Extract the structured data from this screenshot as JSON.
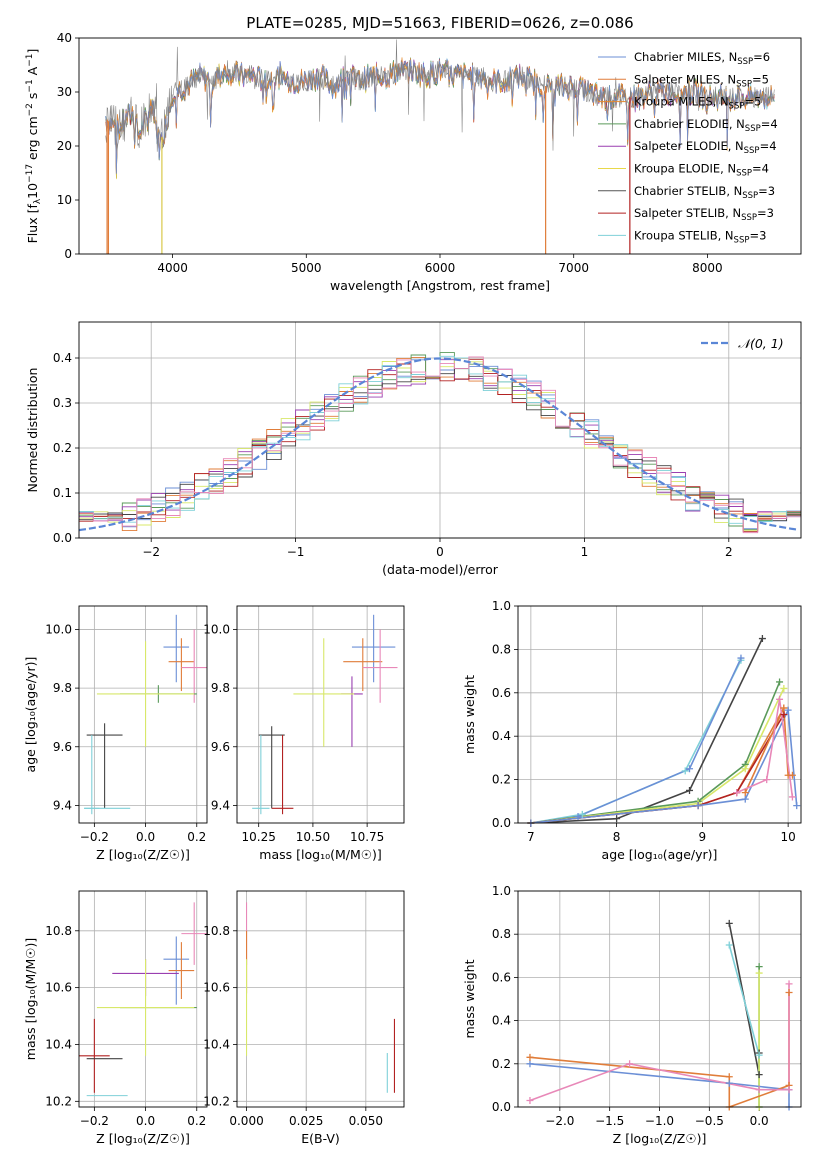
{
  "figure_title": "PLATE=0285, MJD=51663, FIBERID=0626, z=0.086",
  "chart_data": [
    {
      "id": "spectrum",
      "type": "line",
      "title": "PLATE=0285, MJD=51663, FIBERID=0626, z=0.086",
      "xlabel": "wavelength [Angstrom, rest frame]",
      "ylabel_parts": [
        "Flux [f",
        "λ",
        "10",
        "−17",
        " erg cm",
        "−2",
        " s",
        "−1",
        " A",
        "−1",
        "]"
      ],
      "xlim": [
        3300,
        8700
      ],
      "ylim": [
        0,
        40
      ],
      "xticks": [
        4000,
        5000,
        6000,
        7000,
        8000
      ],
      "yticks": [
        0,
        10,
        20,
        30,
        40
      ],
      "grid": false,
      "legend_location": "upper right",
      "legend": [
        {
          "pre": "Chabrier MILES, N",
          "sub": "SSP",
          "post": "=6",
          "color": "#6b8fd6"
        },
        {
          "pre": "Salpeter MILES, N",
          "sub": "SSP",
          "post": "=5",
          "color": "#e07d3a"
        },
        {
          "pre": "Kroupa MILES, N",
          "sub": "SSP",
          "post": "=5",
          "color": "#e6892e"
        },
        {
          "pre": "Chabrier ELODIE, N",
          "sub": "SSP",
          "post": "=4",
          "color": "#5a9a5a"
        },
        {
          "pre": "Salpeter ELODIE, N",
          "sub": "SSP",
          "post": "=4",
          "color": "#9a3fb0"
        },
        {
          "pre": "Kroupa ELODIE, N",
          "sub": "SSP",
          "post": "=4",
          "color": "#e8d84a"
        },
        {
          "pre": "Chabrier STELIB, N",
          "sub": "SSP",
          "post": "=3",
          "color": "#555555"
        },
        {
          "pre": "Salpeter STELIB, N",
          "sub": "SSP",
          "post": "=3",
          "color": "#b22222"
        },
        {
          "pre": "Kroupa STELIB, N",
          "sub": "SSP",
          "post": "=3",
          "color": "#7fd0d8"
        }
      ],
      "data_envelope": {
        "x": [
          3500,
          3550,
          3600,
          3650,
          3700,
          3750,
          3800,
          3850,
          3900,
          3950,
          4000,
          4100,
          4200,
          4300,
          4400,
          4500,
          4600,
          4700,
          4800,
          4900,
          5000,
          5100,
          5200,
          5300,
          5400,
          5500,
          5600,
          5700,
          5800,
          5900,
          6000,
          6100,
          6200,
          6300,
          6400,
          6500,
          6600,
          6700,
          6800,
          6900,
          7000,
          7100,
          7200,
          7300,
          7400,
          7500,
          7600,
          7700,
          7800,
          7900,
          8000,
          8100,
          8200,
          8300,
          8400,
          8500
        ],
        "y": [
          25,
          24,
          23,
          25,
          26,
          22,
          25,
          28,
          20,
          24,
          30,
          31,
          33,
          32,
          34,
          33,
          33,
          32,
          33,
          32,
          32,
          33,
          31,
          33,
          32,
          33,
          33,
          34,
          34,
          33,
          34,
          33,
          33,
          33,
          32,
          32,
          33,
          32,
          31,
          31,
          31,
          30,
          29,
          29,
          29,
          29,
          30,
          30,
          30,
          30,
          29,
          29,
          29,
          29,
          29,
          29
        ]
      },
      "spike_markers": [
        3510,
        3520,
        3920,
        6790,
        7420
      ]
    },
    {
      "id": "residuals",
      "type": "line",
      "xlabel": "(data-model)/error",
      "ylabel": "Normed distribution",
      "xlim": [
        -2.5,
        2.5
      ],
      "ylim": [
        0,
        0.48
      ],
      "xticks": [
        -2,
        -1,
        0,
        1,
        2
      ],
      "yticks": [
        0.0,
        0.1,
        0.2,
        0.3,
        0.4
      ],
      "grid": true,
      "legend_location": "upper right",
      "legend_label": "𝒩(0, 1)",
      "series": [
        {
          "name": "𝒩(0, 1)",
          "kind": "gaussian",
          "mean": 0,
          "sigma": 1,
          "color": "#5a86d6"
        }
      ]
    },
    {
      "id": "age-vs-Z",
      "type": "scatter",
      "xlabel": "Z [log₁₀(Z/Z☉)]",
      "ylabel": "age  [log₁₀(age/yr)]",
      "xlim": [
        -0.26,
        0.24
      ],
      "ylim": [
        9.34,
        10.08
      ],
      "xticks": [
        -0.2,
        0.0,
        0.2
      ],
      "yticks": [
        9.4,
        9.6,
        9.8,
        10.0
      ],
      "grid": true,
      "points": [
        {
          "x": 0.12,
          "y": 9.94,
          "xerr": 0.05,
          "yerr": [
            0.12,
            0.11
          ],
          "color": "#6b8fd6"
        },
        {
          "x": 0.14,
          "y": 9.89,
          "xerr": 0.05,
          "yerr": [
            0.1,
            0.08
          ],
          "color": "#e07d3a"
        },
        {
          "x": 0.19,
          "y": 9.87,
          "xerr": 0.05,
          "yerr": [
            0.12,
            0.13
          ],
          "color": "#e888b8"
        },
        {
          "x": 0.05,
          "y": 9.78,
          "xerr": 0.15,
          "yerr": [
            0.03,
            0.03
          ],
          "color": "#5a9a5a"
        },
        {
          "x": 0.0,
          "y": 9.78,
          "xerr": 0.19,
          "yerr": [
            0.18,
            0.18
          ],
          "color": "#d8e86a"
        },
        {
          "x": -0.16,
          "y": 9.64,
          "xerr": 0.07,
          "yerr": [
            0.25,
            0.04
          ],
          "color": "#444444"
        },
        {
          "x": -0.21,
          "y": 9.39,
          "xerr": 0.03,
          "yerr": [
            0.02,
            0.25
          ],
          "color": "#7fd0d8"
        },
        {
          "x": -0.15,
          "y": 9.39,
          "xerr": 0.09,
          "yerr": [
            0.0,
            0.0
          ],
          "color": "#7fd0d8"
        }
      ]
    },
    {
      "id": "age-vs-mass",
      "type": "scatter",
      "xlabel": "mass [log₁₀(M/M☉)]",
      "ylabel": "",
      "xlim": [
        10.15,
        10.92
      ],
      "ylim": [
        9.34,
        10.08
      ],
      "xticks": [
        10.25,
        10.5,
        10.75
      ],
      "yticks": [
        9.4,
        9.6,
        9.8,
        10.0
      ],
      "grid": true,
      "points": [
        {
          "x": 10.78,
          "y": 9.94,
          "xerr": 0.1,
          "yerr": [
            0.12,
            0.11
          ],
          "color": "#6b8fd6"
        },
        {
          "x": 10.73,
          "y": 9.89,
          "xerr": 0.09,
          "yerr": [
            0.1,
            0.08
          ],
          "color": "#e07d3a"
        },
        {
          "x": 10.81,
          "y": 9.87,
          "xerr": 0.08,
          "yerr": [
            0.12,
            0.13
          ],
          "color": "#e888b8"
        },
        {
          "x": 10.68,
          "y": 9.78,
          "xerr": 0.05,
          "yerr": [
            0.18,
            0.06
          ],
          "color": "#9a3fb0"
        },
        {
          "x": 10.55,
          "y": 9.78,
          "xerr": 0.14,
          "yerr": [
            0.18,
            0.19
          ],
          "color": "#d8e86a"
        },
        {
          "x": 10.31,
          "y": 9.64,
          "xerr": 0.06,
          "yerr": [
            0.25,
            0.03
          ],
          "color": "#444444"
        },
        {
          "x": 10.36,
          "y": 9.39,
          "xerr": 0.05,
          "yerr": [
            0.02,
            0.25
          ],
          "color": "#b22222"
        },
        {
          "x": 10.26,
          "y": 9.39,
          "xerr": 0.04,
          "yerr": [
            0.02,
            0.25
          ],
          "color": "#7fd0d8"
        }
      ]
    },
    {
      "id": "mass-weight-vs-age",
      "type": "line",
      "xlabel": "age  [log₁₀(age/yr)]",
      "ylabel": "mass weight",
      "xlim": [
        6.85,
        10.15
      ],
      "ylim": [
        0,
        1.0
      ],
      "xticks": [
        7,
        8,
        9,
        10
      ],
      "yticks": [
        0.0,
        0.2,
        0.4,
        0.6,
        0.8,
        1.0
      ],
      "grid": true,
      "series": [
        {
          "color": "#444444",
          "x": [
            7.0,
            8.0,
            8.85,
            9.7
          ],
          "y": [
            0.0,
            0.02,
            0.15,
            0.85
          ]
        },
        {
          "color": "#7fd0d8",
          "x": [
            7.0,
            7.6,
            8.8,
            9.45
          ],
          "y": [
            0.0,
            0.04,
            0.24,
            0.75
          ]
        },
        {
          "color": "#6b8fd6",
          "x": [
            7.0,
            7.55,
            8.85,
            9.45
          ],
          "y": [
            0.0,
            0.03,
            0.25,
            0.76
          ]
        },
        {
          "color": "#5a9a5a",
          "x": [
            7.0,
            8.95,
            9.5,
            9.9
          ],
          "y": [
            0.0,
            0.1,
            0.27,
            0.65
          ]
        },
        {
          "color": "#d8e86a",
          "x": [
            7.0,
            8.95,
            9.5,
            9.95
          ],
          "y": [
            0.0,
            0.09,
            0.25,
            0.62
          ]
        },
        {
          "color": "#e07d3a",
          "x": [
            7.0,
            8.95,
            9.4,
            9.95
          ],
          "y": [
            0.0,
            0.08,
            0.14,
            0.53
          ]
        },
        {
          "color": "#b22222",
          "x": [
            7.0,
            8.95,
            9.4,
            9.95
          ],
          "y": [
            0.0,
            0.08,
            0.14,
            0.5
          ]
        },
        {
          "color": "#6b8fd6",
          "x": [
            7.0,
            8.95,
            9.5,
            10.0,
            10.1
          ],
          "y": [
            0.0,
            0.08,
            0.11,
            0.52,
            0.08
          ]
        },
        {
          "color": "#e07d3a",
          "x": [
            9.5,
            9.95,
            10.0,
            10.05
          ],
          "y": [
            0.14,
            0.53,
            0.22,
            0.22
          ]
        },
        {
          "color": "#e888b8",
          "x": [
            9.4,
            9.75,
            9.9,
            10.05
          ],
          "y": [
            0.14,
            0.2,
            0.57,
            0.12
          ]
        }
      ]
    },
    {
      "id": "mass-vs-Z",
      "type": "scatter",
      "xlabel": "Z [log₁₀(Z/Z☉)]",
      "ylabel": "mass [log₁₀(M/M☉)]",
      "xlim": [
        -0.26,
        0.24
      ],
      "ylim": [
        10.18,
        10.94
      ],
      "xticks": [
        -0.2,
        0.0,
        0.2
      ],
      "yticks": [
        10.2,
        10.4,
        10.6,
        10.8
      ],
      "grid": true,
      "points": [
        {
          "x": 0.12,
          "y": 10.7,
          "xerr": 0.05,
          "yerr": [
            0.16,
            0.08
          ],
          "color": "#6b8fd6"
        },
        {
          "x": 0.19,
          "y": 10.79,
          "xerr": 0.05,
          "yerr": [
            0.11,
            0.11
          ],
          "color": "#e888b8"
        },
        {
          "x": 0.14,
          "y": 10.66,
          "xerr": 0.05,
          "yerr": [
            0.1,
            0.1
          ],
          "color": "#e07d3a"
        },
        {
          "x": 0.0,
          "y": 10.65,
          "xerr": 0.13,
          "yerr": [
            0.08,
            0.05
          ],
          "color": "#9a3fb0"
        },
        {
          "x": 0.05,
          "y": 10.53,
          "xerr": 0.15,
          "yerr": [
            0.0,
            0.0
          ],
          "color": "#5a9a5a"
        },
        {
          "x": 0.0,
          "y": 10.53,
          "xerr": 0.19,
          "yerr": [
            0.17,
            0.17
          ],
          "color": "#d8e86a"
        },
        {
          "x": -0.2,
          "y": 10.36,
          "xerr": 0.06,
          "yerr": [
            0.13,
            0.13
          ],
          "color": "#b22222"
        },
        {
          "x": -0.16,
          "y": 10.35,
          "xerr": 0.07,
          "yerr": [
            0.0,
            0.0
          ],
          "color": "#444444"
        },
        {
          "x": -0.15,
          "y": 10.22,
          "xerr": 0.08,
          "yerr": [
            0.0,
            0.0
          ],
          "color": "#7fd0d8"
        }
      ]
    },
    {
      "id": "mass-vs-EBV",
      "type": "scatter",
      "xlabel": "E(B-V)",
      "ylabel": "",
      "xlim": [
        -0.004,
        0.066
      ],
      "ylim": [
        10.18,
        10.94
      ],
      "xticks": [
        0.0,
        0.025,
        0.05
      ],
      "yticks": [
        10.2,
        10.4,
        10.6,
        10.8
      ],
      "grid": true,
      "points": [
        {
          "x": 0.0,
          "y": 10.79,
          "xerr": 0,
          "yerr": [
            0.11,
            0.11
          ],
          "color": "#e888b8"
        },
        {
          "x": 0.0,
          "y": 10.66,
          "xerr": 0,
          "yerr": [
            0.08,
            0.14
          ],
          "color": "#e07d3a"
        },
        {
          "x": 0.0,
          "y": 10.53,
          "xerr": 0,
          "yerr": [
            0.17,
            0.17
          ],
          "color": "#d8e86a"
        },
        {
          "x": 0.062,
          "y": 10.36,
          "xerr": 0,
          "yerr": [
            0.13,
            0.13
          ],
          "color": "#b22222"
        },
        {
          "x": 0.059,
          "y": 10.3,
          "xerr": 0,
          "yerr": [
            0.07,
            0.07
          ],
          "color": "#7fd0d8"
        }
      ]
    },
    {
      "id": "mass-weight-vs-Z",
      "type": "line",
      "xlabel": "Z [log₁₀(Z/Z☉)]",
      "ylabel": "mass weight",
      "xlim": [
        -2.42,
        0.42
      ],
      "ylim": [
        0,
        1.0
      ],
      "xticks": [
        -2.0,
        -1.5,
        -1.0,
        -0.5,
        0.0
      ],
      "yticks": [
        0.0,
        0.2,
        0.4,
        0.6,
        0.8,
        1.0
      ],
      "grid": true,
      "series": [
        {
          "color": "#444444",
          "x": [
            -0.3,
            0.0,
            0.0
          ],
          "y": [
            0.85,
            0.15,
            0.25
          ]
        },
        {
          "color": "#7fd0d8",
          "x": [
            -0.3,
            0.0,
            0.0
          ],
          "y": [
            0.75,
            0.24,
            0.0
          ]
        },
        {
          "color": "#5a9a5a",
          "x": [
            0.0,
            0.0
          ],
          "y": [
            0.65,
            0.0
          ]
        },
        {
          "color": "#d8e86a",
          "x": [
            0.0,
            0.0
          ],
          "y": [
            0.62,
            0.0
          ]
        },
        {
          "color": "#6b8fd6",
          "x": [
            -2.3,
            -0.3,
            0.3,
            0.3
          ],
          "y": [
            0.2,
            0.11,
            0.08,
            0.0
          ]
        },
        {
          "color": "#e07d3a",
          "x": [
            -2.3,
            -0.3,
            -0.3,
            0.3,
            0.3
          ],
          "y": [
            0.23,
            0.14,
            0.0,
            0.1,
            0.53
          ]
        },
        {
          "color": "#e888b8",
          "x": [
            -2.3,
            -1.3,
            0.0,
            0.3,
            0.3
          ],
          "y": [
            0.03,
            0.2,
            0.08,
            0.08,
            0.57
          ]
        }
      ]
    }
  ]
}
